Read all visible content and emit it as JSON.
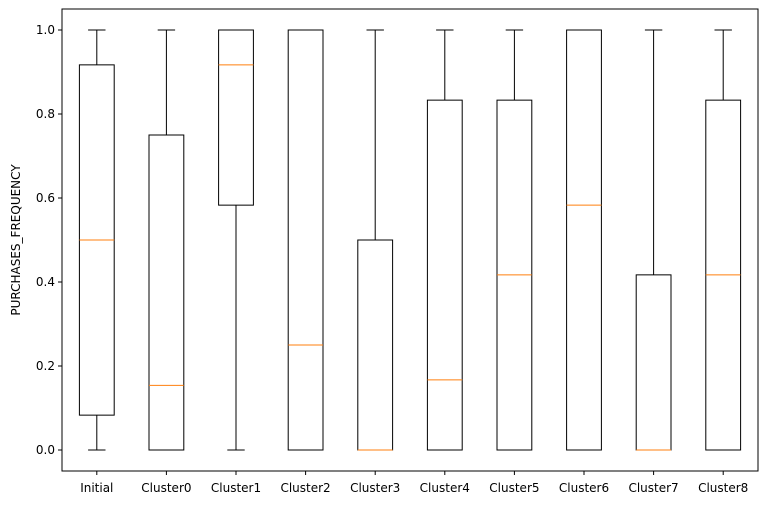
{
  "chart_data": {
    "type": "boxplot",
    "title": "",
    "xlabel": "",
    "ylabel": "PURCHASES_FREQUENCY",
    "ylim": [
      -0.05,
      1.05
    ],
    "yticks": [
      "0.0",
      "0.2",
      "0.4",
      "0.6",
      "0.8",
      "1.0"
    ],
    "grid": false,
    "colors": {
      "box": "#000000",
      "median": "#ff7f0e"
    },
    "categories": [
      "Initial",
      "Cluster0",
      "Cluster1",
      "Cluster2",
      "Cluster3",
      "Cluster4",
      "Cluster5",
      "Cluster6",
      "Cluster7",
      "Cluster8"
    ],
    "boxes": [
      {
        "min": 0.0,
        "q1": 0.083,
        "median": 0.5,
        "q3": 0.917,
        "max": 1.0
      },
      {
        "min": 0.0,
        "q1": 0.0,
        "median": 0.154,
        "q3": 0.75,
        "max": 1.0
      },
      {
        "min": 0.0,
        "q1": 0.583,
        "median": 0.917,
        "q3": 1.0,
        "max": 1.0
      },
      {
        "min": 0.0,
        "q1": 0.0,
        "median": 0.25,
        "q3": 1.0,
        "max": 1.0
      },
      {
        "min": 0.0,
        "q1": 0.0,
        "median": 0.0,
        "q3": 0.5,
        "max": 1.0
      },
      {
        "min": 0.0,
        "q1": 0.0,
        "median": 0.167,
        "q3": 0.833,
        "max": 1.0
      },
      {
        "min": 0.0,
        "q1": 0.0,
        "median": 0.417,
        "q3": 0.833,
        "max": 1.0
      },
      {
        "min": 0.0,
        "q1": 0.0,
        "median": 0.583,
        "q3": 1.0,
        "max": 1.0
      },
      {
        "min": 0.0,
        "q1": 0.0,
        "median": 0.0,
        "q3": 0.417,
        "max": 1.0
      },
      {
        "min": 0.0,
        "q1": 0.0,
        "median": 0.417,
        "q3": 0.833,
        "max": 1.0
      }
    ]
  }
}
